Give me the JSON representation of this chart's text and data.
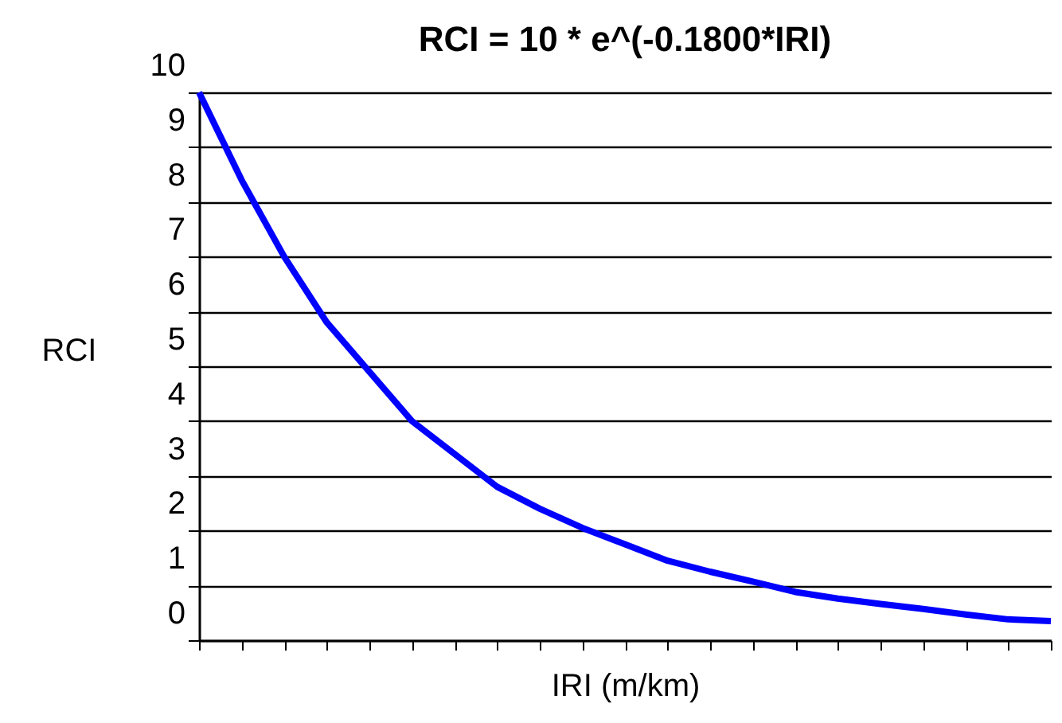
{
  "chart_data": {
    "type": "line",
    "title": "RCI = 10 * e^(-0.1800*IRI)",
    "xlabel": "IRI  (m/km)",
    "ylabel": "RCI",
    "categories": [
      null,
      null,
      null,
      null,
      null,
      null,
      null,
      null,
      null,
      null,
      null,
      null,
      null,
      null,
      null,
      null,
      null,
      null,
      null,
      null,
      null
    ],
    "series": [
      {
        "color": "#0000ff",
        "values": [
          10,
          8.4,
          7.0,
          5.8,
          4.9,
          4.0,
          3.4,
          2.8,
          2.4,
          2.05,
          1.75,
          1.45,
          1.25,
          1.07,
          0.88,
          0.76,
          0.66,
          0.57,
          0.47,
          0.38,
          0.35
        ]
      }
    ],
    "ylim": [
      0,
      10
    ],
    "yticks": [
      0,
      1,
      2,
      3,
      4,
      5,
      6,
      7,
      8,
      9,
      10
    ],
    "grid": "y",
    "tick_labels": "y",
    "marker": "none",
    "line_style": "solid"
  }
}
